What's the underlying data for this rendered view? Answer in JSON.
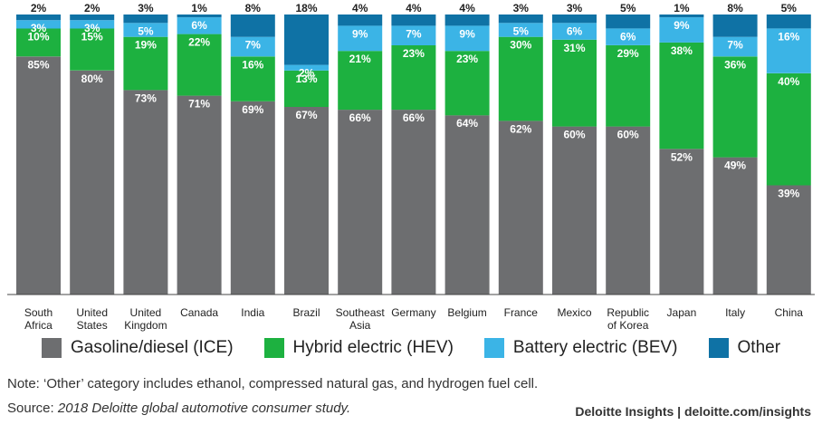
{
  "chart_data": {
    "type": "bar",
    "stacked": true,
    "categories": [
      [
        "South",
        "Africa"
      ],
      [
        "United",
        "States"
      ],
      [
        "United",
        "Kingdom"
      ],
      [
        "Canada"
      ],
      [
        "India"
      ],
      [
        "Brazil"
      ],
      [
        "Southeast",
        "Asia"
      ],
      [
        "Germany"
      ],
      [
        "Belgium"
      ],
      [
        "France"
      ],
      [
        "Mexico"
      ],
      [
        "Republic",
        "of Korea"
      ],
      [
        "Japan"
      ],
      [
        "Italy"
      ],
      [
        "China"
      ]
    ],
    "series": [
      {
        "name": "Gasoline/diesel (ICE)",
        "color": "#6d6e70",
        "values": [
          85,
          80,
          73,
          71,
          69,
          67,
          66,
          66,
          64,
          62,
          60,
          60,
          52,
          49,
          39
        ]
      },
      {
        "name": "Hybrid electric (HEV)",
        "color": "#1db140",
        "values": [
          10,
          15,
          19,
          22,
          16,
          13,
          21,
          23,
          23,
          30,
          31,
          29,
          38,
          36,
          40
        ]
      },
      {
        "name": "Battery electric (BEV)",
        "color": "#3bb4e6",
        "values": [
          3,
          3,
          5,
          6,
          7,
          2,
          9,
          7,
          9,
          5,
          6,
          6,
          9,
          7,
          16
        ]
      },
      {
        "name": "Other",
        "color": "#0f72a5",
        "values": [
          2,
          2,
          3,
          1,
          8,
          18,
          4,
          4,
          4,
          3,
          3,
          5,
          1,
          8,
          5
        ]
      }
    ],
    "ylim": [
      0,
      100
    ],
    "value_suffix": "%",
    "title": "",
    "xlabel": "",
    "ylabel": "",
    "legend_position": "bottom"
  },
  "legend": [
    {
      "label": "Gasoline/diesel (ICE)",
      "color": "#6d6e70"
    },
    {
      "label": "Hybrid electric (HEV)",
      "color": "#1db140"
    },
    {
      "label": "Battery electric (BEV)",
      "color": "#3bb4e6"
    },
    {
      "label": "Other",
      "color": "#0f72a5"
    }
  ],
  "note": "Note: ‘Other’ category includes ethanol, compressed natural gas, and hydrogen fuel cell.",
  "source_prefix": "Source: ",
  "source_title": "2018 Deloitte global automotive consumer study.",
  "branding": "Deloitte Insights | deloitte.com/insights"
}
